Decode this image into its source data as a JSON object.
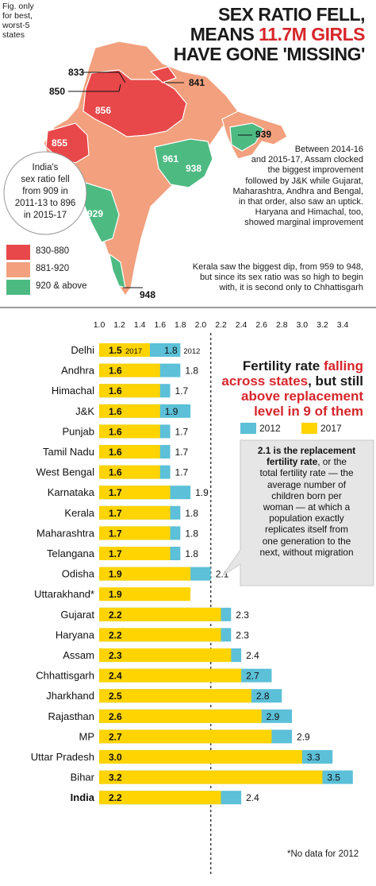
{
  "header": {
    "title_line1": "SEX RATIO FELL,",
    "title_line2_prefix": "MEANS ",
    "title_line2_highlight": "11.7M GIRLS",
    "title_line3": "HAVE GONE 'MISSING'"
  },
  "fig_note": [
    "Fig. only",
    "for best,",
    "worst-5",
    "states"
  ],
  "india_circle": [
    "India's",
    "sex ratio fell",
    "from 909 in",
    "2011-13 to 896",
    "in 2015-17"
  ],
  "map_colors": {
    "low": "#e8484a",
    "mid": "#f2a07e",
    "high": "#4dba82"
  },
  "legend": [
    {
      "label": "830-880",
      "color": "#e8484a"
    },
    {
      "label": "881-920",
      "color": "#f2a07e"
    },
    {
      "label": "920 & above",
      "color": "#4dba82"
    }
  ],
  "map_values": {
    "v856": "856",
    "v855": "855",
    "v961": "961",
    "v938": "938",
    "v929": "929",
    "c833": "833",
    "c850": "850",
    "c841": "841",
    "c939": "939",
    "c948": "948"
  },
  "paragraph1": [
    "Between 2014-16",
    "and 2015-17, Assam clocked",
    "the biggest improvement",
    "followed by J&K while Gujarat,",
    "Maharashtra, Andhra and Bengal,",
    "in that order, also saw an uptick.",
    "Haryana and Himachal, too,",
    "showed marginal improvement"
  ],
  "paragraph2": [
    "Kerala saw the biggest dip, from 959 to 948,",
    "but since its sex ratio was so high to begin",
    "with, it is second only to Chhattisgarh"
  ],
  "chart_note": {
    "bold_lead": "2.1 is the replacement",
    "bold_lead2": "fertility rate",
    "lines": [
      ", or the",
      "total fertility rate — the",
      "average number of",
      "children born per",
      "woman — at which a",
      "population exactly",
      "replicates itself from",
      "one generation to the",
      "next, without migration"
    ]
  },
  "chart_title": {
    "line1_plain": "Fertility rate ",
    "line1_red": "falling",
    "line2_red": "across states",
    "line2_plain": ", but still",
    "line3_red": "above replacement",
    "line4_red": "level in 9 of them"
  },
  "footnote": "*No data for 2012",
  "colors": {
    "y2012": "#5bc0d8",
    "y2017": "#ffd400",
    "red": "#d7262b"
  },
  "chart_data": {
    "type": "bar",
    "title": "Fertility rate falling across states, but still above replacement level in 9 of them",
    "xlim": [
      1.0,
      3.4
    ],
    "ticks": [
      "1.0",
      "1.2",
      "1.4",
      "1.6",
      "1.8",
      "2.0",
      "2.2",
      "2.4",
      "2.6",
      "2.8",
      "3.0",
      "3.2",
      "3.4"
    ],
    "tick_values": [
      1.0,
      1.2,
      1.4,
      1.6,
      1.8,
      2.0,
      2.2,
      2.4,
      2.6,
      2.8,
      3.0,
      3.2,
      3.4
    ],
    "reference_line": 2.1,
    "legend": [
      "2012",
      "2017"
    ],
    "series_2012_tag": "2012",
    "series_2017_tag": "2017",
    "categories": [
      "Delhi",
      "Andhra",
      "Himachal",
      "J&K",
      "Punjab",
      "Tamil Nadu",
      "West Bengal",
      "Karnataka",
      "Kerala",
      "Maharashtra",
      "Telangana",
      "Odisha",
      "Uttarakhand*",
      "Gujarat",
      "Haryana",
      "Assam",
      "Chhattisgarh",
      "Jharkhand",
      "Rajasthan",
      "MP",
      "Uttar Pradesh",
      "Bihar",
      "India"
    ],
    "series": [
      {
        "name": "2017",
        "values": [
          1.5,
          1.6,
          1.6,
          1.6,
          1.6,
          1.6,
          1.6,
          1.7,
          1.7,
          1.7,
          1.7,
          1.9,
          1.9,
          2.2,
          2.2,
          2.3,
          2.4,
          2.5,
          2.6,
          2.7,
          3.0,
          3.2,
          2.2
        ]
      },
      {
        "name": "2012",
        "values": [
          1.8,
          1.8,
          1.7,
          1.9,
          1.7,
          1.7,
          1.7,
          1.9,
          1.8,
          1.8,
          1.8,
          2.1,
          null,
          2.3,
          2.3,
          2.4,
          2.7,
          2.8,
          2.9,
          2.9,
          3.3,
          3.5,
          2.4
        ]
      }
    ],
    "label_2017": [
      "1.5",
      "1.6",
      "1.6",
      "1.6",
      "1.6",
      "1.6",
      "1.6",
      "1.7",
      "1.7",
      "1.7",
      "1.7",
      "1.9",
      "1.9",
      "2.2",
      "2.2",
      "2.3",
      "2.4",
      "2.5",
      "2.6",
      "2.7",
      "3.0",
      "3.2",
      "2.2"
    ],
    "label_2012": [
      "1.8",
      "1.8",
      "1.7",
      "1.9",
      "1.7",
      "1.7",
      "1.7",
      "1.9",
      "1.8",
      "1.8",
      "1.8",
      "2.1",
      "",
      "2.3",
      "2.3",
      "2.4",
      "2.7",
      "2.8",
      "2.9",
      "2.9",
      "3.3",
      "3.5",
      "2.4"
    ]
  }
}
